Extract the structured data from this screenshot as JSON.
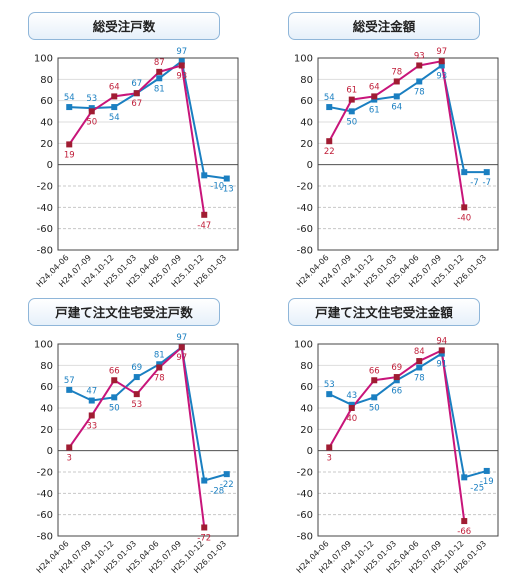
{
  "chart_data": [
    {
      "type": "line",
      "title": "総受注戸数",
      "categories": [
        "H24.04-06",
        "H24.07-09",
        "H24.10-12",
        "H25.01-03",
        "H25.04-06",
        "H25.07-09",
        "H25.10-12",
        "H26.01-03"
      ],
      "ylim": [
        -80,
        100
      ],
      "yticks": [
        100,
        80,
        60,
        40,
        20,
        0,
        -20,
        -40,
        -60,
        -80
      ],
      "grid": "dashed below zero",
      "series": [
        {
          "color": "#1a7fc1",
          "values": [
            54,
            53,
            54,
            67,
            81,
            97,
            -10,
            -13
          ],
          "labels": [
            "54",
            "53",
            "54",
            "67",
            "81",
            "97",
            "-10",
            "-13"
          ]
        },
        {
          "color": "#c8157a",
          "values": [
            19,
            50,
            64,
            67,
            87,
            93,
            -47,
            null
          ],
          "labels": [
            "19",
            "50",
            "64",
            "67",
            "87",
            "93",
            "-47",
            ""
          ]
        }
      ]
    },
    {
      "type": "line",
      "title": "総受注金額",
      "categories": [
        "H24.04-06",
        "H24.07-09",
        "H24.10-12",
        "H25.01-03",
        "H25.04-06",
        "H25.07-09",
        "H25.10-12",
        "H26.01-03"
      ],
      "ylim": [
        -80,
        100
      ],
      "yticks": [
        100,
        80,
        60,
        40,
        20,
        0,
        -20,
        -40,
        -60,
        -80
      ],
      "grid": "dashed below zero",
      "series": [
        {
          "color": "#1a7fc1",
          "values": [
            54,
            50,
            61,
            64,
            78,
            93,
            -7,
            -7
          ],
          "labels": [
            "54",
            "50",
            "61",
            "64",
            "78",
            "93",
            "-7",
            "-7"
          ]
        },
        {
          "color": "#c8157a",
          "values": [
            22,
            61,
            64,
            78,
            93,
            97,
            -40,
            null
          ],
          "labels": [
            "22",
            "61",
            "64",
            "78",
            "93",
            "97",
            "-40",
            ""
          ]
        }
      ]
    },
    {
      "type": "line",
      "title": "戸建て注文住宅受注戸数",
      "categories": [
        "H24.04-06",
        "H24.07-09",
        "H24.10-12",
        "H25.01-03",
        "H25.04-06",
        "H25.07-09",
        "H25.10-12",
        "H26.01-03"
      ],
      "ylim": [
        -80,
        100
      ],
      "yticks": [
        100,
        80,
        60,
        40,
        20,
        0,
        -20,
        -40,
        -60,
        -80
      ],
      "grid": "dashed below zero",
      "series": [
        {
          "color": "#1a7fc1",
          "values": [
            57,
            47,
            50,
            69,
            81,
            97,
            -28,
            -22
          ],
          "labels": [
            "57",
            "47",
            "50",
            "69",
            "81",
            "97",
            "-28",
            "-22"
          ]
        },
        {
          "color": "#c8157a",
          "values": [
            3,
            33,
            66,
            53,
            78,
            97,
            -72,
            null
          ],
          "labels": [
            "3",
            "33",
            "66",
            "53",
            "78",
            "97",
            "-72",
            ""
          ]
        }
      ]
    },
    {
      "type": "line",
      "title": "戸建て注文住宅受注金額",
      "categories": [
        "H24.04-06",
        "H24.07-09",
        "H24.10-12",
        "H25.01-03",
        "H25.04-06",
        "H25.07-09",
        "H25.10-12",
        "H26.01-03"
      ],
      "ylim": [
        -80,
        100
      ],
      "yticks": [
        100,
        80,
        60,
        40,
        20,
        0,
        -20,
        -40,
        -60,
        -80
      ],
      "grid": "dashed below zero",
      "series": [
        {
          "color": "#1a7fc1",
          "values": [
            53,
            43,
            50,
            66,
            78,
            91,
            -25,
            -19
          ],
          "labels": [
            "53",
            "43",
            "50",
            "66",
            "78",
            "91",
            "-25",
            "-19"
          ]
        },
        {
          "color": "#c8157a",
          "values": [
            3,
            40,
            66,
            69,
            84,
            94,
            -66,
            null
          ],
          "labels": [
            "3",
            "40",
            "66",
            "69",
            "84",
            "94",
            "-66",
            ""
          ]
        }
      ]
    }
  ]
}
